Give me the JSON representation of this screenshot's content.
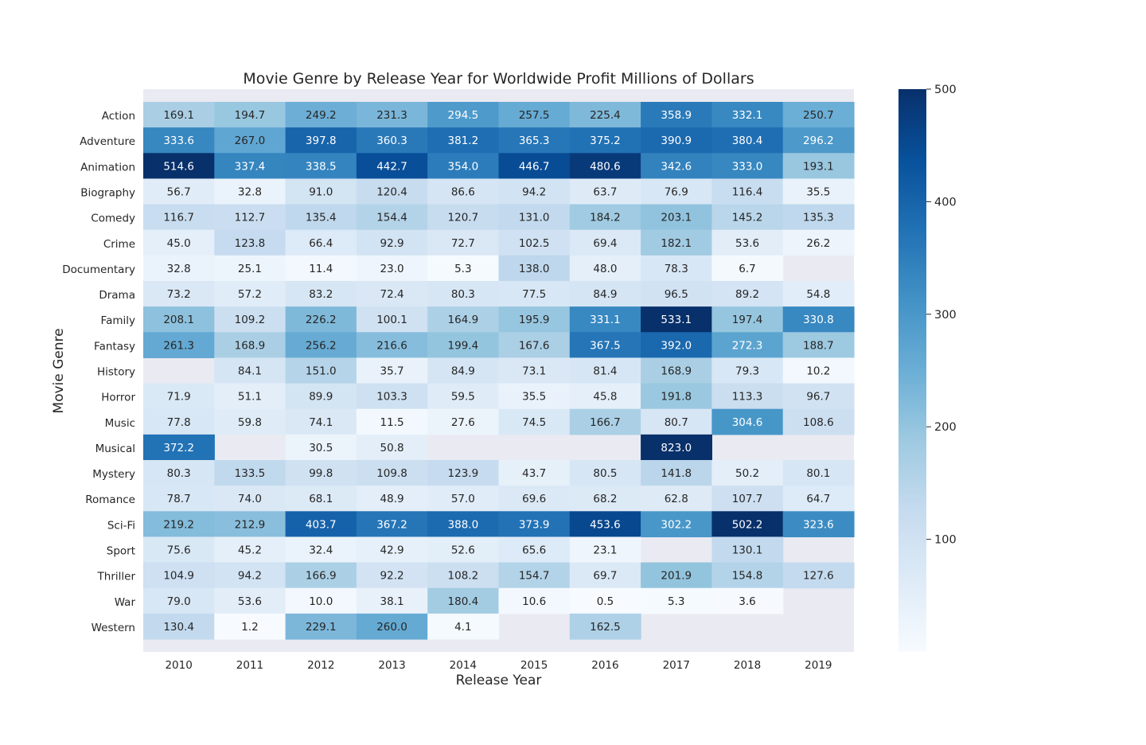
{
  "chart_data": {
    "type": "heatmap",
    "title": "Movie Genre by Release Year for Worldwide Profit Millions of Dollars",
    "xlabel": "Release Year",
    "ylabel": "Movie Genre",
    "x": [
      "2010",
      "2011",
      "2012",
      "2013",
      "2014",
      "2015",
      "2016",
      "2017",
      "2018",
      "2019"
    ],
    "y": [
      "Action",
      "Adventure",
      "Animation",
      "Biography",
      "Comedy",
      "Crime",
      "Documentary",
      "Drama",
      "Family",
      "Fantasy",
      "History",
      "Horror",
      "Music",
      "Musical",
      "Mystery",
      "Romance",
      "Sci-Fi",
      "Sport",
      "Thriller",
      "War",
      "Western"
    ],
    "values": [
      [
        169.1,
        194.7,
        249.2,
        231.3,
        294.5,
        257.5,
        225.4,
        358.9,
        332.1,
        250.7
      ],
      [
        333.6,
        267.0,
        397.8,
        360.3,
        381.2,
        365.3,
        375.2,
        390.9,
        380.4,
        296.2
      ],
      [
        514.6,
        337.4,
        338.5,
        442.7,
        354.0,
        446.7,
        480.6,
        342.6,
        333.0,
        193.1
      ],
      [
        56.7,
        32.8,
        91.0,
        120.4,
        86.6,
        94.2,
        63.7,
        76.9,
        116.4,
        35.5
      ],
      [
        116.7,
        112.7,
        135.4,
        154.4,
        120.7,
        131.0,
        184.2,
        203.1,
        145.2,
        135.3
      ],
      [
        45.0,
        123.8,
        66.4,
        92.9,
        72.7,
        102.5,
        69.4,
        182.1,
        53.6,
        26.2
      ],
      [
        32.8,
        25.1,
        11.4,
        23.0,
        5.3,
        138.0,
        48.0,
        78.3,
        6.7,
        null
      ],
      [
        73.2,
        57.2,
        83.2,
        72.4,
        80.3,
        77.5,
        84.9,
        96.5,
        89.2,
        54.8
      ],
      [
        208.1,
        109.2,
        226.2,
        100.1,
        164.9,
        195.9,
        331.1,
        533.1,
        197.4,
        330.8
      ],
      [
        261.3,
        168.9,
        256.2,
        216.6,
        199.4,
        167.6,
        367.5,
        392.0,
        272.3,
        188.7
      ],
      [
        null,
        84.1,
        151.0,
        35.7,
        84.9,
        73.1,
        81.4,
        168.9,
        79.3,
        10.2
      ],
      [
        71.9,
        51.1,
        89.9,
        103.3,
        59.5,
        35.5,
        45.8,
        191.8,
        113.3,
        96.7
      ],
      [
        77.8,
        59.8,
        74.1,
        11.5,
        27.6,
        74.5,
        166.7,
        80.7,
        304.6,
        108.6
      ],
      [
        372.2,
        null,
        30.5,
        50.8,
        null,
        null,
        null,
        823.0,
        null,
        null
      ],
      [
        80.3,
        133.5,
        99.8,
        109.8,
        123.9,
        43.7,
        80.5,
        141.8,
        50.2,
        80.1
      ],
      [
        78.7,
        74.0,
        68.1,
        48.9,
        57.0,
        69.6,
        68.2,
        62.8,
        107.7,
        64.7
      ],
      [
        219.2,
        212.9,
        403.7,
        367.2,
        388.0,
        373.9,
        453.6,
        302.2,
        502.2,
        323.6
      ],
      [
        75.6,
        45.2,
        32.4,
        42.9,
        52.6,
        65.6,
        23.1,
        null,
        130.1,
        null
      ],
      [
        104.9,
        94.2,
        166.9,
        92.2,
        108.2,
        154.7,
        69.7,
        201.9,
        154.8,
        127.6
      ],
      [
        79.0,
        53.6,
        10.0,
        38.1,
        180.4,
        10.6,
        0.5,
        5.3,
        3.6,
        null
      ],
      [
        130.4,
        1.2,
        229.1,
        260.0,
        4.1,
        null,
        162.5,
        null,
        null,
        null
      ]
    ],
    "colormap": "Blues",
    "vmin": 0,
    "vmax": 500,
    "colorbar_ticks": [
      100,
      200,
      300,
      400,
      500
    ],
    "missing_color": "#eaeaf2",
    "grid": false
  }
}
